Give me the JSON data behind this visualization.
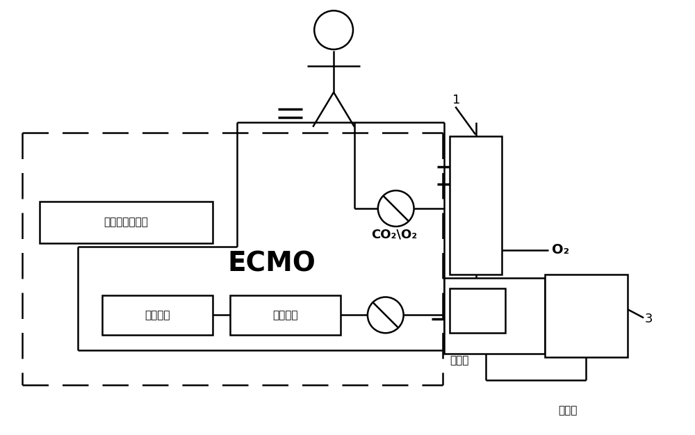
{
  "bg_color": "#ffffff",
  "line_color": "#000000",
  "figsize": [
    10.0,
    6.26
  ],
  "dpi": 100,
  "labels": {
    "ecmo": "ECMO",
    "blood_o2": "血氧饱和度检测",
    "blood_pressure": "血压监测",
    "air_monitor": "空气监测",
    "co2_o2": "CO₂\\O₂",
    "o2": "O₂",
    "hot_water_out": "热水出",
    "hot_water_in": "热水进",
    "label_1": "1",
    "label_3": "3"
  }
}
